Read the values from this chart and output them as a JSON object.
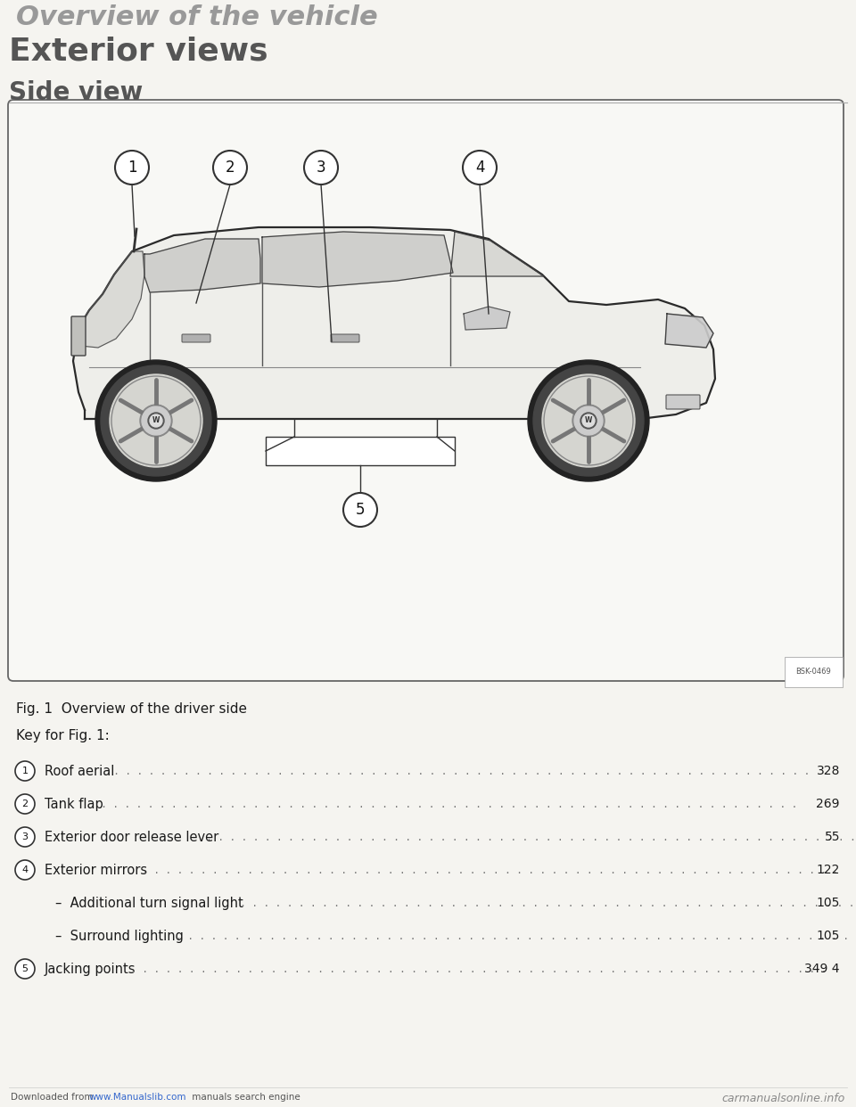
{
  "bg_color": "#f5f4f0",
  "title_top": "Overview of the vehicle",
  "section_title": "Exterior views",
  "subsection_title": "Side view",
  "fig_caption": "Fig. 1  Overview of the driver side",
  "key_header": "Key for Fig. 1:",
  "items": [
    {
      "num": "1",
      "label": "Roof aerial",
      "page": "328"
    },
    {
      "num": "2",
      "label": "Tank flap",
      "page": "269"
    },
    {
      "num": "3",
      "label": "Exterior door release lever",
      "page": "55"
    },
    {
      "num": "4",
      "label": "Exterior mirrors",
      "page": "122"
    },
    {
      "num": "",
      "label": "–  Additional turn signal light",
      "page": "105"
    },
    {
      "num": "",
      "label": "–  Surround lighting",
      "page": "105"
    },
    {
      "num": "5",
      "label": "Jacking points",
      "page": "349 4"
    }
  ],
  "footer_left1": "Downloaded from ",
  "footer_link": "www.Manualslib.com",
  "footer_left2": " manuals search engine",
  "footer_right": "carmanualsonline.info",
  "image_code": "BSK-0469",
  "circle_bg": "#ffffff",
  "circle_border": "#333333"
}
